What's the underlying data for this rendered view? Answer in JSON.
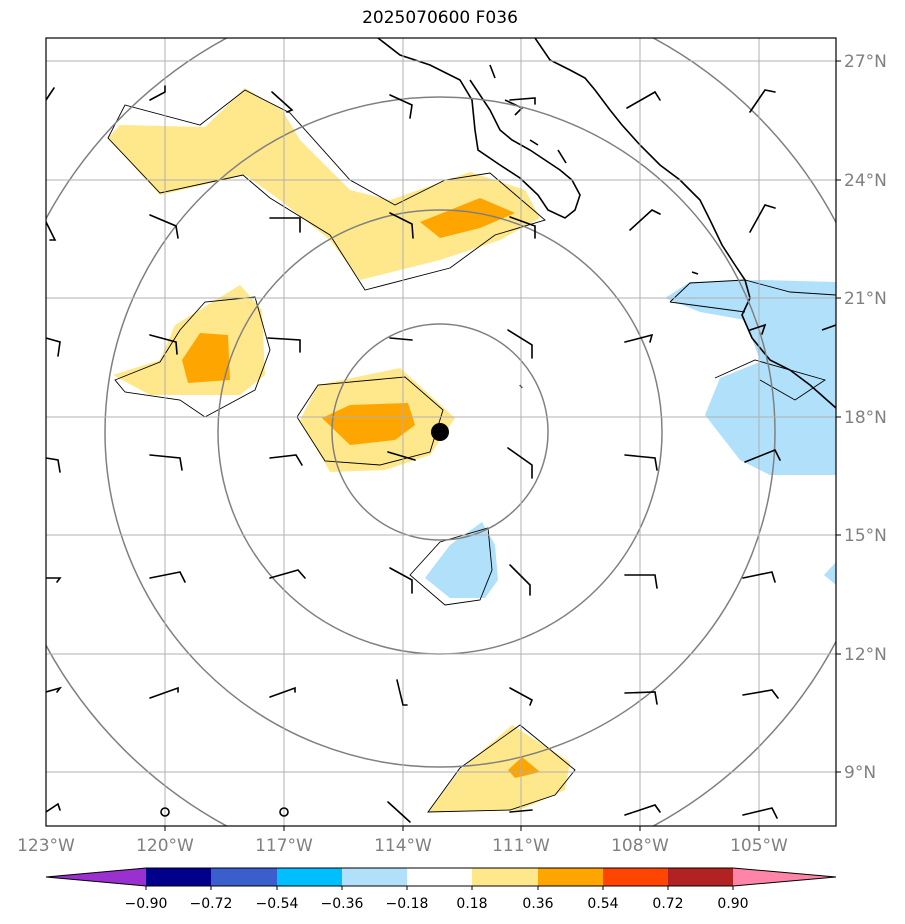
{
  "title": "2025070600 F036",
  "map": {
    "lon_range": [
      -123,
      -103
    ],
    "lat_range": [
      7.8,
      27.6
    ],
    "lon_ticks": [
      "123°W",
      "120°W",
      "117°W",
      "114°W",
      "111°W",
      "108°W",
      "105°W"
    ],
    "lat_ticks": [
      "27°N",
      "24°N",
      "21°N",
      "18°N",
      "15°N",
      "12°N",
      "9°N"
    ],
    "gridlines": true,
    "storm_center": {
      "lon": -113.1,
      "lat": 17.6
    }
  },
  "colorbar": {
    "ticks": [
      "−0.90",
      "−0.72",
      "−0.54",
      "−0.36",
      "−0.18",
      "0.18",
      "0.36",
      "0.54",
      "0.72",
      "0.90"
    ],
    "colors": [
      "#9a30d0",
      "#00008b",
      "#3a5fcd",
      "#00bfff",
      "#b0e0fa",
      "#ffffff",
      "#ffe88c",
      "#ffa500",
      "#ff4500",
      "#b22222",
      "#ff85a8"
    ]
  }
}
